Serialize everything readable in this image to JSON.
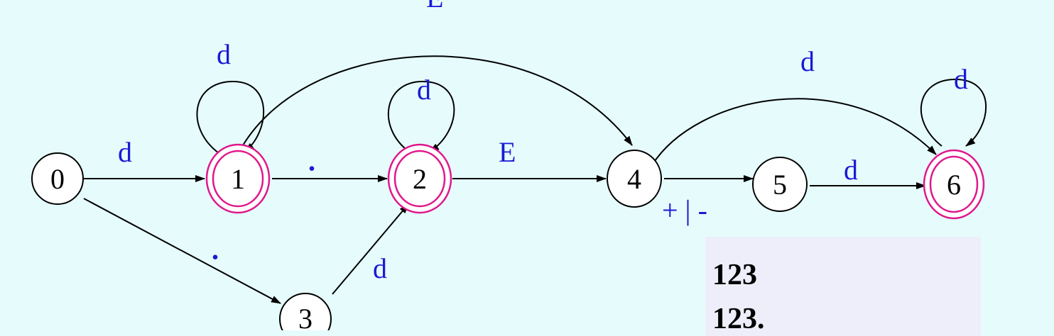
{
  "states": [
    {
      "id": "0",
      "label": "0",
      "accepting": false
    },
    {
      "id": "1",
      "label": "1",
      "accepting": true
    },
    {
      "id": "2",
      "label": "2",
      "accepting": true
    },
    {
      "id": "3",
      "label": "3",
      "accepting": false
    },
    {
      "id": "4",
      "label": "4",
      "accepting": false
    },
    {
      "id": "5",
      "label": "5",
      "accepting": false
    },
    {
      "id": "6",
      "label": "6",
      "accepting": true
    }
  ],
  "edges": [
    {
      "from": "0",
      "to": "1",
      "label": "d"
    },
    {
      "from": "1",
      "to": "1",
      "label": "d"
    },
    {
      "from": "1",
      "to": "2",
      "label": "."
    },
    {
      "from": "2",
      "to": "2",
      "label": "d"
    },
    {
      "from": "1",
      "to": "4",
      "label": "E"
    },
    {
      "from": "2",
      "to": "4",
      "label": "E"
    },
    {
      "from": "0",
      "to": "3",
      "label": "."
    },
    {
      "from": "3",
      "to": "2",
      "label": "d"
    },
    {
      "from": "4",
      "to": "5",
      "label": "+ | -"
    },
    {
      "from": "4",
      "to": "6",
      "label": "d"
    },
    {
      "from": "5",
      "to": "6",
      "label": "d"
    },
    {
      "from": "6",
      "to": "6",
      "label": "d"
    }
  ],
  "examples": [
    "123",
    "123."
  ]
}
